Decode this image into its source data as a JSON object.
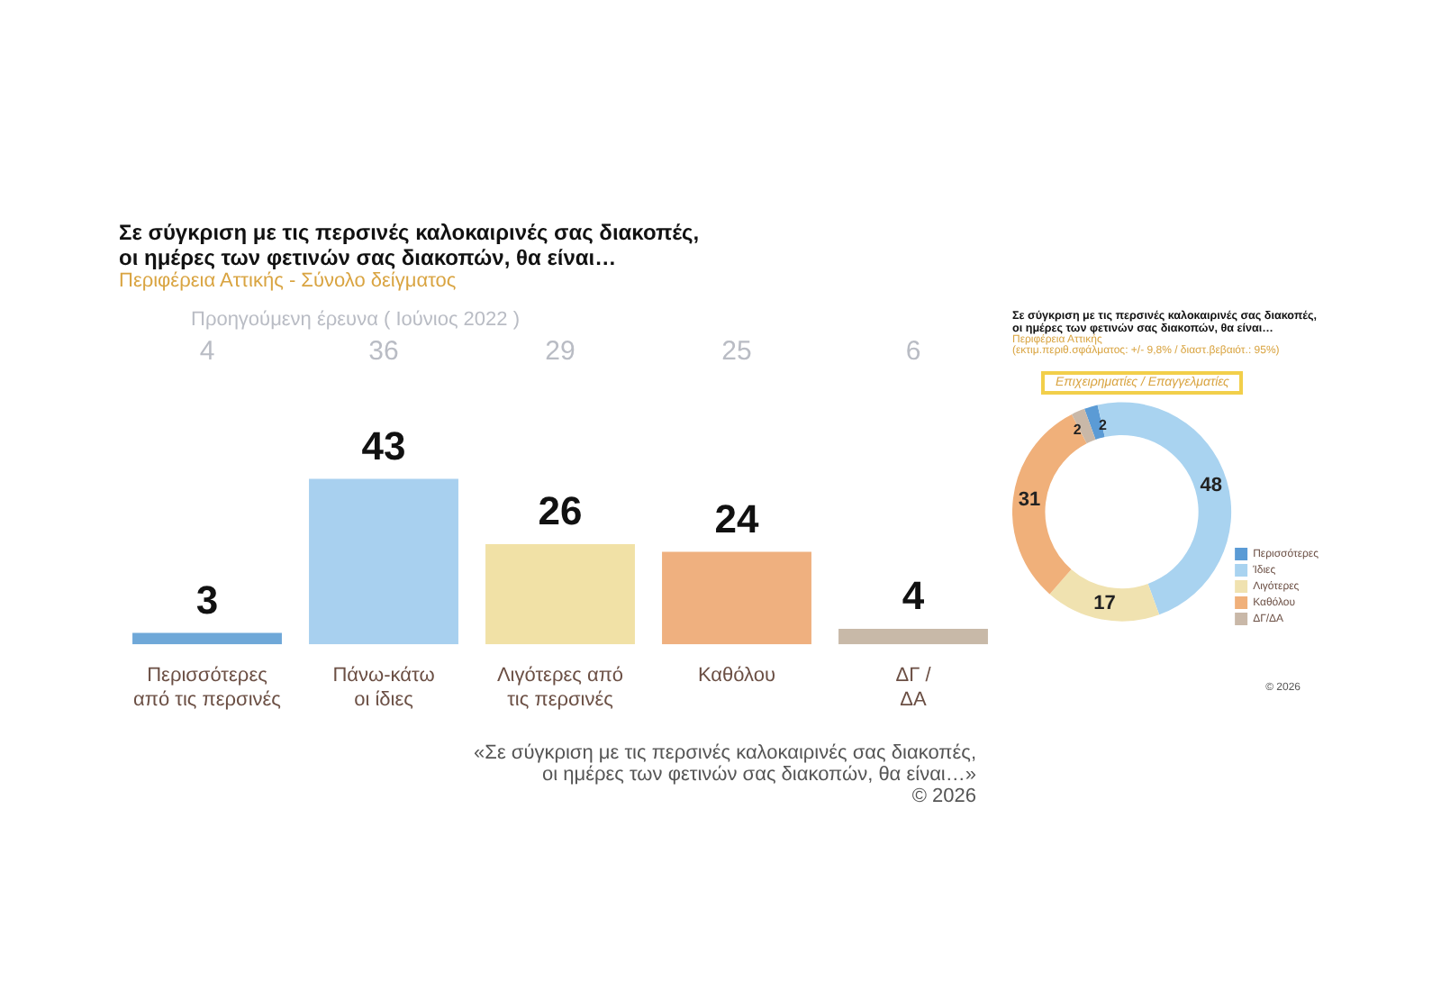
{
  "chart_data": [
    {
      "type": "bar",
      "title": "Σε σύγκριση με τις περσινές καλοκαιρινές σας διακοπές,\nοι ημέρες των φετινών σας διακοπών, θα είναι…",
      "subtitle": "Περιφέρεια Αττικής - Σύνολο δείγματος",
      "categories": [
        "Περισσότερες\nαπό τις περσινές",
        "Πάνω-κάτω\nοι ίδιες",
        "Λιγότερες από\nτις περσινές",
        "Καθόλου",
        "ΔΓ /\nΔΑ"
      ],
      "values": [
        3,
        43,
        26,
        24,
        4
      ],
      "colors": [
        "#6fa8d8",
        "#a8d0ef",
        "#f1e1a6",
        "#efb07f",
        "#c8b9a8"
      ],
      "data_labels": true,
      "annotations": [
        "Προηγούμενη έρευνα ( Ιούνιος 2022 )",
        "4",
        "36",
        "29",
        "25",
        "6",
        "«Σε σύγκριση με τις περσινές καλοκαιρινές σας διακοπές,\nοι ημέρες των φετινών σας διακοπών, θα είναι…»",
        "© 2026"
      ]
    },
    {
      "type": "donut",
      "title": "Σε σύγκριση με τις περσινές καλοκαιρινές σας διακοπές,\nοι ημέρες των φετινών σας διακοπών, θα είναι…",
      "subtitle": "Περιφέρεια Αττικής\n(εκτιμ.περιθ.σφάλματος: +/- 9,8% / διαστ.βεβαιότ.: 95%)",
      "categories": [
        "Περισσότερες",
        "Ίδιες",
        "Λιγότερες",
        "Καθόλου",
        "ΔΓ/ΔΑ"
      ],
      "values": [
        2,
        48,
        17,
        31,
        2
      ],
      "colors": [
        "#5b9bd5",
        "#a9d3f0",
        "#f0e2b0",
        "#f0b07a",
        "#c9b8a8"
      ],
      "data_labels": true,
      "legend": "bottom right",
      "annotations": [
        "Επιχειρηματίες / Επαγγελματίες",
        "© 2026"
      ]
    }
  ]
}
